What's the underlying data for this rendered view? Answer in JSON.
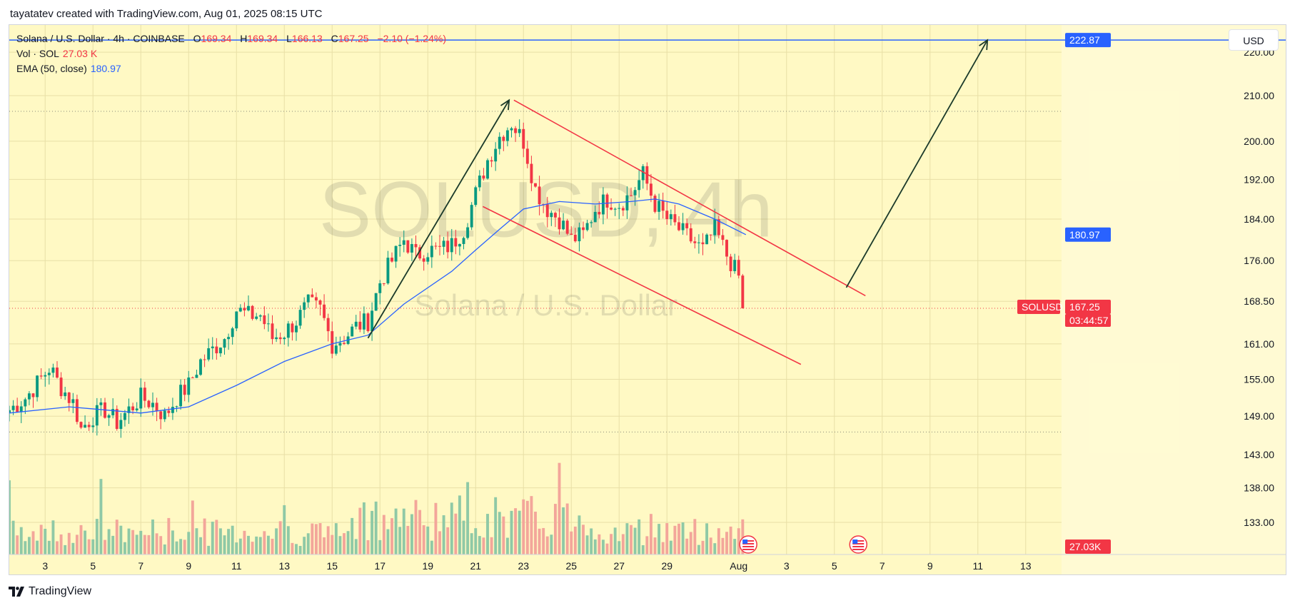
{
  "header": {
    "text": "tayatatev created with TradingView.com, Aug 01, 2025 08:15 UTC"
  },
  "info": {
    "symbol_line": "Solana / U.S. Dollar · 4h · COINBASE",
    "open_label": "O",
    "open": "169.34",
    "high_label": "H",
    "high": "169.34",
    "low_label": "L",
    "low": "166.13",
    "close_label": "C",
    "close": "167.25",
    "change": "−2.10 (−1.24%)",
    "vol_label": "Vol · SOL",
    "vol_value": "27.03 K",
    "ema_label": "EMA (50, close)",
    "ema_value": "180.97"
  },
  "currency_button": "USD",
  "watermark": {
    "symbol": "SOLUSD, 4h",
    "name": "Solana / U.S. Dollar"
  },
  "badges": {
    "target": "222.87",
    "ema": "180.97",
    "ticker": "SOLUSD",
    "last_price": "167.25",
    "countdown": "03:44:57",
    "volume": "27.03K"
  },
  "footer": {
    "brand": "TradingView"
  },
  "colors": {
    "background": "#fff9c4",
    "up": "#089981",
    "down": "#f23645",
    "ema": "#2962ff",
    "channel": "#f23645",
    "arrow": "#1b3a2a",
    "vol_up": "#8fc9a6",
    "vol_down": "#f3a69a"
  },
  "chart_data": {
    "type": "candlestick",
    "symbol": "SOLUSD",
    "interval": "4h",
    "exchange": "COINBASE",
    "x_tick_labels": [
      "3",
      "5",
      "7",
      "9",
      "11",
      "13",
      "15",
      "17",
      "19",
      "21",
      "23",
      "25",
      "27",
      "29",
      "Aug",
      "3",
      "5",
      "7",
      "9",
      "11",
      "13"
    ],
    "x_tick_days": [
      3,
      5,
      7,
      9,
      11,
      13,
      15,
      17,
      19,
      21,
      23,
      25,
      27,
      29,
      32,
      34,
      36,
      38,
      40,
      42,
      44
    ],
    "x_range_days": [
      1.5,
      45.5
    ],
    "y_tick_labels": [
      "220.00",
      "210.00",
      "200.00",
      "192.00",
      "184.00",
      "176.00",
      "168.50",
      "161.00",
      "155.00",
      "149.00",
      "143.00",
      "138.00",
      "133.00"
    ],
    "y_ticks": [
      220,
      210,
      200,
      192,
      184,
      176,
      168.5,
      161,
      155,
      149,
      143,
      138,
      133
    ],
    "y_range_approx": [
      128.5,
      226.5
    ],
    "y_scale": "log",
    "grid": true,
    "reference_lines": {
      "target": 222.87,
      "ema_last": 180.97,
      "last_price": 167.25,
      "dotted_high": 206.5,
      "dotted_low": 146.5
    },
    "drawings": {
      "up_arrow_1": {
        "from": [
          16.5,
          162
        ],
        "to": [
          22.4,
          209
        ]
      },
      "up_arrow_2": {
        "from": [
          36.5,
          171
        ],
        "to": [
          42.4,
          222.87
        ]
      },
      "channel_upper": {
        "from": [
          22.6,
          209
        ],
        "to": [
          37.3,
          169.5
        ]
      },
      "channel_lower": {
        "from": [
          21.3,
          186.5
        ],
        "to": [
          34.6,
          157.5
        ]
      }
    },
    "ohlc_anchor_points": [
      [
        1.5,
        150
      ],
      [
        2.2,
        152
      ],
      [
        2.8,
        155
      ],
      [
        3.2,
        157
      ],
      [
        3.6,
        154
      ],
      [
        4.2,
        151
      ],
      [
        4.5,
        147
      ],
      [
        5.0,
        149
      ],
      [
        5.5,
        150
      ],
      [
        6.0,
        148
      ],
      [
        6.5,
        150
      ],
      [
        7.0,
        152
      ],
      [
        7.5,
        151
      ],
      [
        8.0,
        149
      ],
      [
        8.5,
        152
      ],
      [
        9.0,
        154
      ],
      [
        9.5,
        158
      ],
      [
        10.0,
        160
      ],
      [
        10.5,
        162
      ],
      [
        11.0,
        167
      ],
      [
        11.5,
        166
      ],
      [
        12.0,
        166
      ],
      [
        12.5,
        162
      ],
      [
        13.0,
        163
      ],
      [
        13.5,
        165
      ],
      [
        14.0,
        168
      ],
      [
        14.5,
        167
      ],
      [
        15.0,
        161
      ],
      [
        15.5,
        162
      ],
      [
        16.0,
        164
      ],
      [
        16.5,
        165
      ],
      [
        17.0,
        172
      ],
      [
        17.5,
        176
      ],
      [
        18.0,
        180
      ],
      [
        18.5,
        177
      ],
      [
        19.0,
        178
      ],
      [
        19.5,
        178
      ],
      [
        20.0,
        179
      ],
      [
        20.5,
        182
      ],
      [
        21.0,
        189
      ],
      [
        21.5,
        196
      ],
      [
        22.0,
        201
      ],
      [
        22.5,
        204
      ],
      [
        23.0,
        200
      ],
      [
        23.5,
        190
      ],
      [
        24.0,
        186
      ],
      [
        24.5,
        184
      ],
      [
        25.0,
        180
      ],
      [
        25.5,
        181
      ],
      [
        26.0,
        186
      ],
      [
        26.5,
        188
      ],
      [
        27.0,
        187
      ],
      [
        27.5,
        189
      ],
      [
        28.0,
        193
      ],
      [
        28.5,
        187
      ],
      [
        29.0,
        184
      ],
      [
        29.5,
        182
      ],
      [
        30.0,
        180
      ],
      [
        30.5,
        178
      ],
      [
        31.0,
        182
      ],
      [
        31.5,
        177
      ],
      [
        32.0,
        173
      ],
      [
        32.3,
        167.25
      ]
    ],
    "ema_anchor_points": [
      [
        1.5,
        149.5
      ],
      [
        4.0,
        150.5
      ],
      [
        7.0,
        149.5
      ],
      [
        9.0,
        150.5
      ],
      [
        11.0,
        154
      ],
      [
        13.0,
        158
      ],
      [
        15.0,
        161
      ],
      [
        16.5,
        162.5
      ],
      [
        18.0,
        168
      ],
      [
        20.0,
        174
      ],
      [
        21.0,
        178
      ],
      [
        22.0,
        182
      ],
      [
        23.0,
        186
      ],
      [
        24.5,
        187.5
      ],
      [
        26.0,
        187
      ],
      [
        27.5,
        187.5
      ],
      [
        28.5,
        188
      ],
      [
        29.5,
        187
      ],
      [
        31.0,
        184
      ],
      [
        32.3,
        180.97
      ]
    ],
    "volume": {
      "unit": "SOL",
      "last": "27.03K"
    }
  }
}
